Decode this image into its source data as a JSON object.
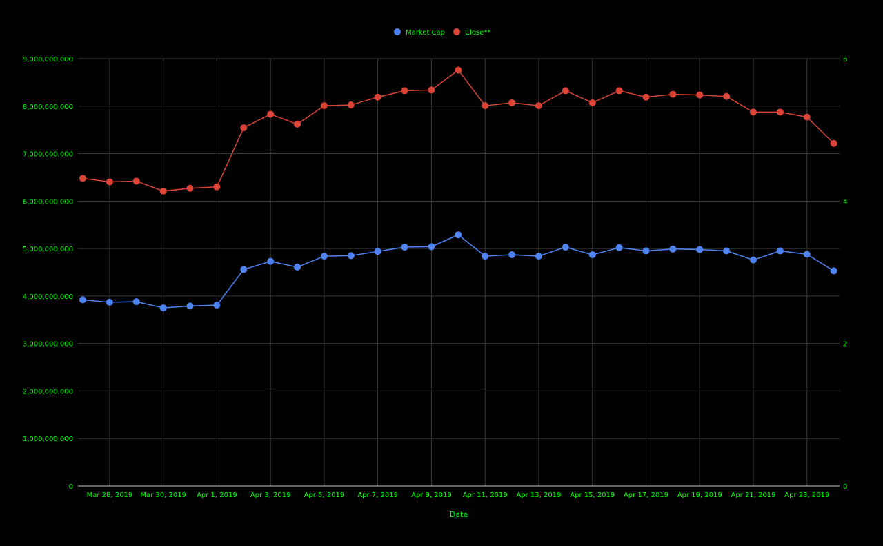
{
  "chart_data": {
    "type": "line",
    "xlabel": "Date",
    "legend": {
      "placement": "top-center"
    },
    "grid": true,
    "colors": {
      "background": "#000000",
      "text": "#00ff00",
      "grid": "#3a3a3a",
      "market_cap": "#4f83f1",
      "close": "#db4437"
    },
    "x": [
      "2019-03-27",
      "2019-03-28",
      "2019-03-29",
      "2019-03-30",
      "2019-03-31",
      "2019-04-01",
      "2019-04-02",
      "2019-04-03",
      "2019-04-04",
      "2019-04-05",
      "2019-04-06",
      "2019-04-07",
      "2019-04-08",
      "2019-04-09",
      "2019-04-10",
      "2019-04-11",
      "2019-04-12",
      "2019-04-13",
      "2019-04-14",
      "2019-04-15",
      "2019-04-16",
      "2019-04-17",
      "2019-04-18",
      "2019-04-19",
      "2019-04-20",
      "2019-04-21",
      "2019-04-22",
      "2019-04-23",
      "2019-04-24"
    ],
    "x_tick_labels": [
      "Mar 28, 2019",
      "Mar 30, 2019",
      "Apr 1, 2019",
      "Apr 3, 2019",
      "Apr 5, 2019",
      "Apr 7, 2019",
      "Apr 9, 2019",
      "Apr 11, 2019",
      "Apr 13, 2019",
      "Apr 15, 2019",
      "Apr 17, 2019",
      "Apr 19, 2019",
      "Apr 21, 2019",
      "Apr 23, 2019"
    ],
    "y_left": {
      "range": [
        0,
        9000000000
      ],
      "ticks": [
        0,
        1000000000,
        2000000000,
        3000000000,
        4000000000,
        5000000000,
        6000000000,
        7000000000,
        8000000000,
        9000000000
      ],
      "tick_labels": [
        "0",
        "1,000,000,000",
        "2,000,000,000",
        "3,000,000,000",
        "4,000,000,000",
        "5,000,000,000",
        "6,000,000,000",
        "7,000,000,000",
        "8,000,000,000",
        "9,000,000,000"
      ]
    },
    "y_right": {
      "range": [
        0,
        6
      ],
      "ticks": [
        0,
        2,
        4,
        6
      ],
      "tick_labels": [
        "0",
        "2",
        "4",
        "6"
      ]
    },
    "series": [
      {
        "name": "Market Cap",
        "axis": "left",
        "values": [
          3920000000,
          3870000000,
          3880000000,
          3750000000,
          3790000000,
          3810000000,
          4560000000,
          4730000000,
          4610000000,
          4840000000,
          4850000000,
          4940000000,
          5030000000,
          5040000000,
          5290000000,
          4840000000,
          4870000000,
          4840000000,
          5030000000,
          4870000000,
          5020000000,
          4950000000,
          4990000000,
          4980000000,
          4950000000,
          4760000000,
          4950000000,
          4880000000,
          4530000000
        ]
      },
      {
        "name": "Close**",
        "axis": "right",
        "values": [
          4.32,
          4.27,
          4.28,
          4.14,
          4.18,
          4.2,
          5.03,
          5.22,
          5.08,
          5.34,
          5.35,
          5.46,
          5.55,
          5.56,
          5.84,
          5.34,
          5.38,
          5.34,
          5.55,
          5.38,
          5.55,
          5.46,
          5.5,
          5.49,
          5.47,
          5.25,
          5.25,
          5.18,
          4.81
        ]
      }
    ]
  }
}
